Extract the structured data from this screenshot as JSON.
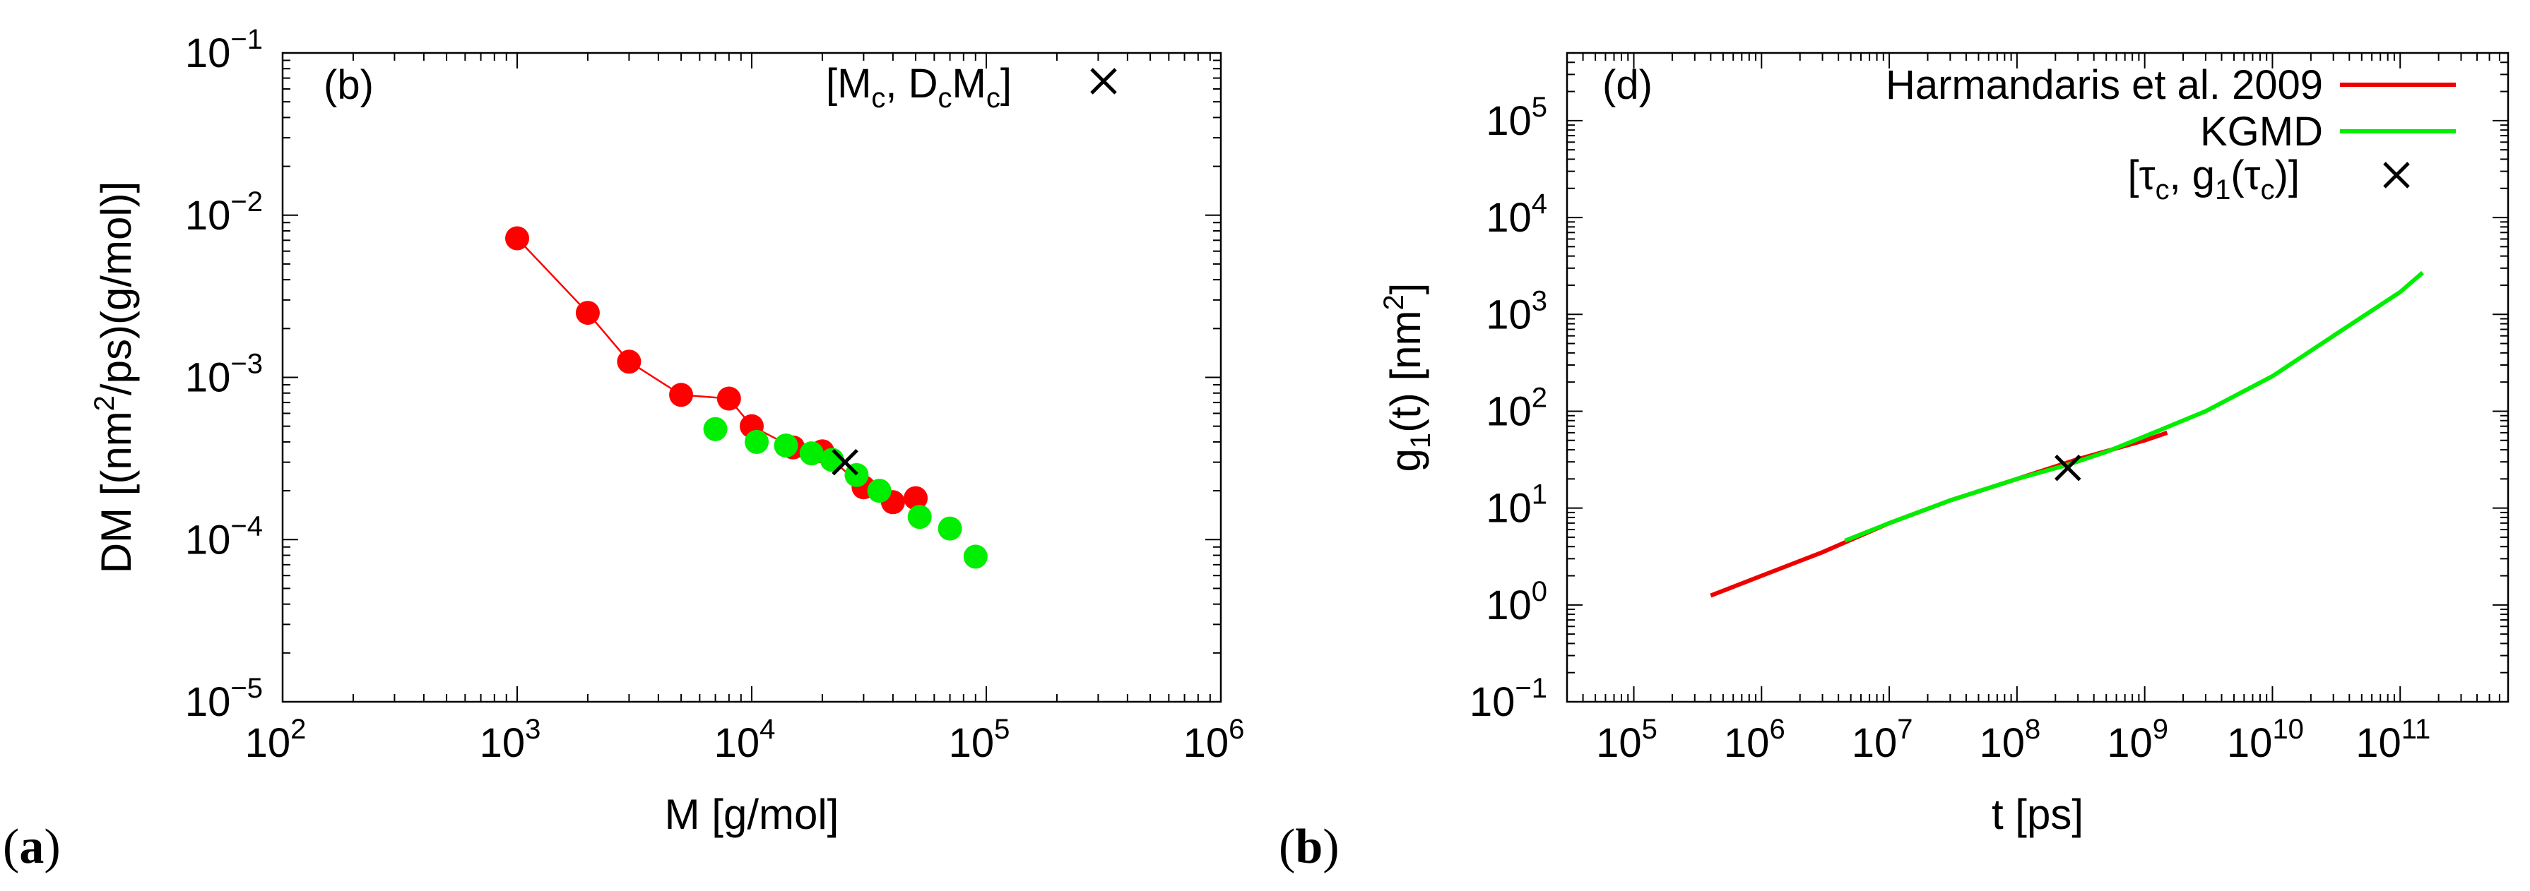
{
  "figure_captions": [
    {
      "open": "(",
      "letter": "a",
      "close": ")"
    },
    {
      "open": "(",
      "letter": "b",
      "close": ")"
    }
  ],
  "colors": {
    "red": "#ff0000",
    "green": "#00ee00",
    "line_red": "#ee0000",
    "black": "#000000"
  },
  "chart_data": [
    {
      "type": "scatter",
      "panel_tag": "(b)",
      "xlabel": "M [g/mol]",
      "ylabel": {
        "pre": "DM [(nm",
        "sup": "2",
        "post": "/ps)(g/mol)]"
      },
      "xscale": "log",
      "yscale": "log",
      "xlim": [
        100,
        1000000
      ],
      "ylim": [
        1e-05,
        0.1
      ],
      "xticks": [
        {
          "base": "10",
          "exp": "2"
        },
        {
          "base": "10",
          "exp": "3"
        },
        {
          "base": "10",
          "exp": "4"
        },
        {
          "base": "10",
          "exp": "5"
        },
        {
          "base": "10",
          "exp": "6"
        }
      ],
      "yticks": [
        {
          "base": "10",
          "exp": "−5"
        },
        {
          "base": "10",
          "exp": "−4"
        },
        {
          "base": "10",
          "exp": "−3"
        },
        {
          "base": "10",
          "exp": "−2"
        },
        {
          "base": "10",
          "exp": "−1"
        }
      ],
      "legend": {
        "position": "top-right",
        "label": {
          "a": "[M",
          "a_sub": "c",
          "b": ", D",
          "b_sub": "c",
          "c": "M",
          "c_sub": "c",
          "d": "]"
        }
      },
      "series": [
        {
          "name": "red",
          "color": "#ff0000",
          "marker": "circle",
          "connected": true,
          "x": [
            1000,
            2000,
            3000,
            5000,
            8000,
            10000,
            15000,
            20000,
            30000,
            40000,
            50000
          ],
          "y": [
            0.0072,
            0.0025,
            0.00125,
            0.00078,
            0.00074,
            0.0005,
            0.00037,
            0.00035,
            0.00021,
            0.00017,
            0.00018
          ]
        },
        {
          "name": "green",
          "color": "#00ee00",
          "marker": "circle",
          "connected": false,
          "x": [
            7000,
            10500,
            14000,
            18000,
            22000,
            28000,
            35000,
            52000,
            70000,
            90000
          ],
          "y": [
            0.00048,
            0.0004,
            0.00038,
            0.00034,
            0.00031,
            0.00025,
            0.0002,
            0.000138,
            0.000117,
            7.85e-05
          ]
        }
      ],
      "critical_point": {
        "x": 25000,
        "y": 0.0003
      },
      "legend_marker": "×"
    },
    {
      "type": "line",
      "panel_tag": "(d)",
      "xlabel": "t [ps]",
      "ylabel": {
        "pre": "g",
        "sub": "1",
        "mid": "(t) [nm",
        "sup": "2",
        "post": "]"
      },
      "xscale": "log",
      "yscale": "log",
      "xlim": [
        30000,
        700000000000
      ],
      "ylim": [
        0.1,
        500000
      ],
      "xticks": [
        {
          "base": "10",
          "exp": "5"
        },
        {
          "base": "10",
          "exp": "6"
        },
        {
          "base": "10",
          "exp": "7"
        },
        {
          "base": "10",
          "exp": "8"
        },
        {
          "base": "10",
          "exp": "9"
        },
        {
          "base": "10",
          "exp": "10"
        },
        {
          "base": "10",
          "exp": "11"
        }
      ],
      "yticks": [
        {
          "base": "10",
          "exp": "−1"
        },
        {
          "base": "10",
          "exp": "0"
        },
        {
          "base": "10",
          "exp": "1"
        },
        {
          "base": "10",
          "exp": "2"
        },
        {
          "base": "10",
          "exp": "3"
        },
        {
          "base": "10",
          "exp": "4"
        },
        {
          "base": "10",
          "exp": "5"
        }
      ],
      "legend": {
        "position": "top-right",
        "entries": [
          {
            "label": "Harmandaris et al. 2009",
            "color": "#ee0000"
          },
          {
            "label": "KGMD",
            "color": "#00ee00"
          }
        ],
        "marker_label": {
          "a": "[τ",
          "a_sub": "c",
          "b": ", g",
          "b_sub": "1",
          "c": "(τ",
          "c_sub": "c",
          "d": ")]"
        }
      },
      "series": [
        {
          "name": "Harmandaris et al. 2009",
          "color": "#ee0000",
          "x": [
            400000,
            1000000,
            3000000,
            10000000,
            30000000,
            100000000,
            300000000,
            1000000000,
            1500000000
          ],
          "y": [
            1.25,
            2.0,
            3.5,
            7.0,
            12,
            20,
            32,
            50,
            60
          ]
        },
        {
          "name": "KGMD",
          "color": "#00ee00",
          "x": [
            4500000,
            10000000,
            30000000,
            100000000,
            250000000,
            500000000,
            1000000000,
            3000000000,
            10000000000,
            30000000000,
            100000000000,
            150000000000
          ],
          "y": [
            4.6,
            7.0,
            12,
            20,
            28,
            38,
            55,
            100,
            230,
            600,
            1700,
            2700
          ]
        }
      ],
      "critical_point": {
        "x": 250000000,
        "y": 26
      },
      "legend_marker": "×"
    }
  ]
}
